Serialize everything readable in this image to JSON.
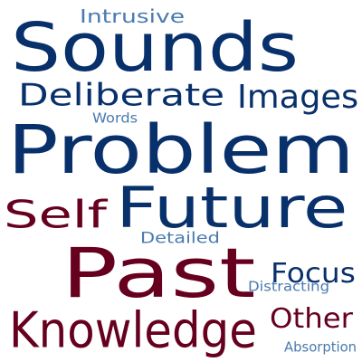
{
  "palette": {
    "dark_blue": "#08306b",
    "dark_red": "#67001f",
    "mid_blue": "#4a7ab0",
    "background": "#ffffff"
  },
  "words": [
    {
      "text": "Sounds",
      "color": "dark_blue",
      "rank": 2
    },
    {
      "text": "Intrusive",
      "color": "mid_blue",
      "rank": 9
    },
    {
      "text": "Deliberate",
      "color": "dark_blue",
      "rank": 5
    },
    {
      "text": "Images",
      "color": "dark_blue",
      "rank": 6
    },
    {
      "text": "Words",
      "color": "mid_blue",
      "rank": 13
    },
    {
      "text": "Problem",
      "color": "dark_blue",
      "rank": 1
    },
    {
      "text": "Self",
      "color": "dark_red",
      "rank": 7
    },
    {
      "text": "Future",
      "color": "dark_blue",
      "rank": 3
    },
    {
      "text": "Detailed",
      "color": "mid_blue",
      "rank": 11
    },
    {
      "text": "Past",
      "color": "dark_red",
      "rank": 0
    },
    {
      "text": "Focus",
      "color": "dark_blue",
      "rank": 8
    },
    {
      "text": "Distracting",
      "color": "mid_blue",
      "rank": 12
    },
    {
      "text": "Knowledge",
      "color": "dark_red",
      "rank": 4
    },
    {
      "text": "Other",
      "color": "dark_red",
      "rank": 10
    },
    {
      "text": "Absorption",
      "color": "mid_blue",
      "rank": 14
    }
  ]
}
